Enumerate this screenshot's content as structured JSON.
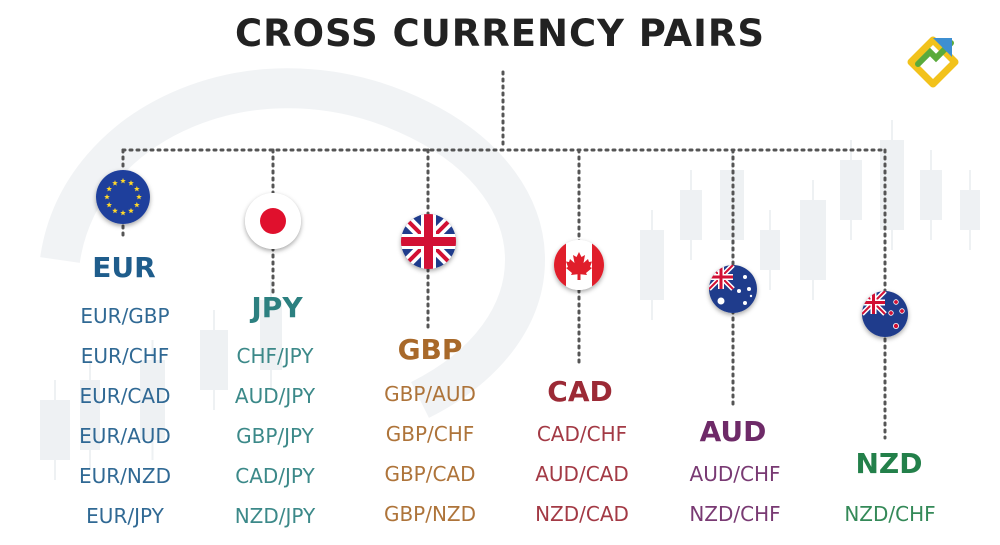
{
  "title": "CROSS CURRENCY PAIRS",
  "logo_icon": "brand-logo-icon",
  "colors": {
    "title": "#222222",
    "connector": "#555555",
    "background_pattern": "#eef1f3"
  },
  "currencies": [
    {
      "code": "EUR",
      "color": "#1f5d8c",
      "flag_icon": "eu-flag-icon",
      "pairs": [
        "EUR/GBP",
        "EUR/CHF",
        "EUR/CAD",
        "EUR/AUD",
        "EUR/NZD",
        "EUR/JPY"
      ]
    },
    {
      "code": "JPY",
      "color": "#2c8080",
      "flag_icon": "japan-flag-icon",
      "pairs": [
        "CHF/JPY",
        "AUD/JPY",
        "GBP/JPY",
        "CAD/JPY",
        "NZD/JPY"
      ]
    },
    {
      "code": "GBP",
      "color": "#a8692a",
      "flag_icon": "uk-flag-icon",
      "pairs": [
        "GBP/AUD",
        "GBP/CHF",
        "GBP/CAD",
        "GBP/NZD"
      ]
    },
    {
      "code": "CAD",
      "color": "#9c2a36",
      "flag_icon": "canada-flag-icon",
      "pairs": [
        "CAD/CHF",
        "AUD/CAD",
        "NZD/CAD"
      ]
    },
    {
      "code": "AUD",
      "color": "#6e2a68",
      "flag_icon": "australia-flag-icon",
      "pairs": [
        "AUD/CHF",
        "NZD/CHF"
      ]
    },
    {
      "code": "NZD",
      "color": "#23804a",
      "flag_icon": "new-zealand-flag-icon",
      "pairs": [
        "NZD/CHF"
      ]
    }
  ]
}
